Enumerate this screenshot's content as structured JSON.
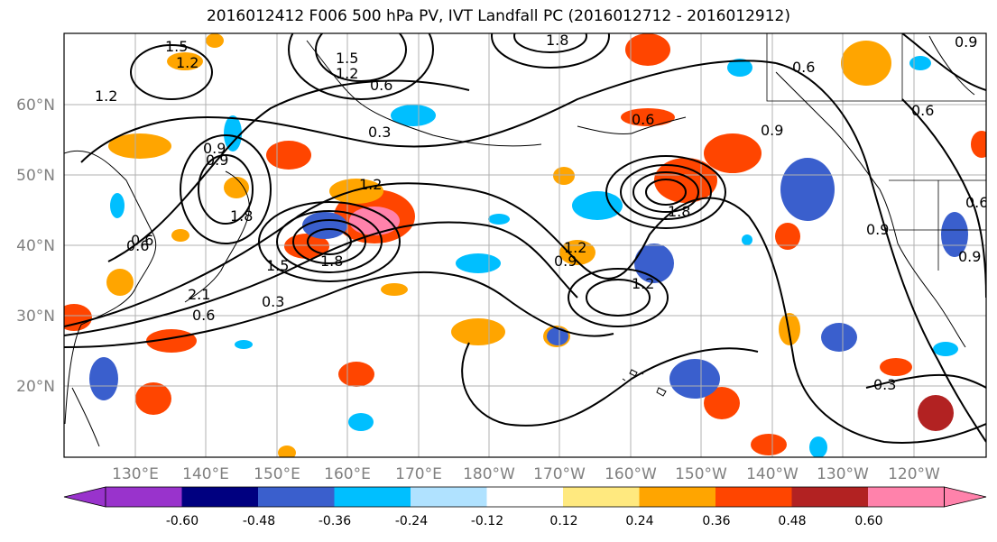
{
  "title": "2016012412 F006 500 hPa PV, IVT Landfall PC (2016012712 - 2016012912)",
  "map": {
    "lat_labels": [
      "60°N",
      "50°N",
      "40°N",
      "30°N",
      "20°N"
    ],
    "lon_labels": [
      "130°E",
      "140°E",
      "150°E",
      "160°E",
      "170°E",
      "180°W",
      "170°W",
      "160°W",
      "150°W",
      "140°W",
      "130°W",
      "120°W"
    ],
    "contour_labels": [
      "1.5",
      "1.2",
      "1.5",
      "1.2",
      "1.8",
      "0.9",
      "1.2",
      "0.6",
      "0.6",
      "0.3",
      "0.6",
      "0.9",
      "0.9",
      "0.6",
      "1.8",
      "1.5",
      "1.8",
      "0.3",
      "0.6",
      "0.6",
      "2.1",
      "1.2",
      "0.9",
      "1.2",
      "1.8",
      "1.2",
      "0.9",
      "0.6",
      "0.9",
      "0.3",
      "0.9",
      "0.6"
    ],
    "colors": {
      "land_outline": "#000000",
      "grid": "#b0b0b0",
      "contour": "#000000"
    }
  },
  "colorbar": {
    "ticks": [
      "-0.60",
      "-0.48",
      "-0.36",
      "-0.24",
      "-0.12",
      "0.12",
      "0.24",
      "0.36",
      "0.48",
      "0.60"
    ],
    "bins": [
      "#9933cc",
      "#000080",
      "#3a5fcd",
      "#00bfff",
      "#b0e2ff",
      "#ffffff",
      "#ffe97f",
      "#ffa500",
      "#ff4500",
      "#b22222",
      "#ff82ab"
    ]
  }
}
